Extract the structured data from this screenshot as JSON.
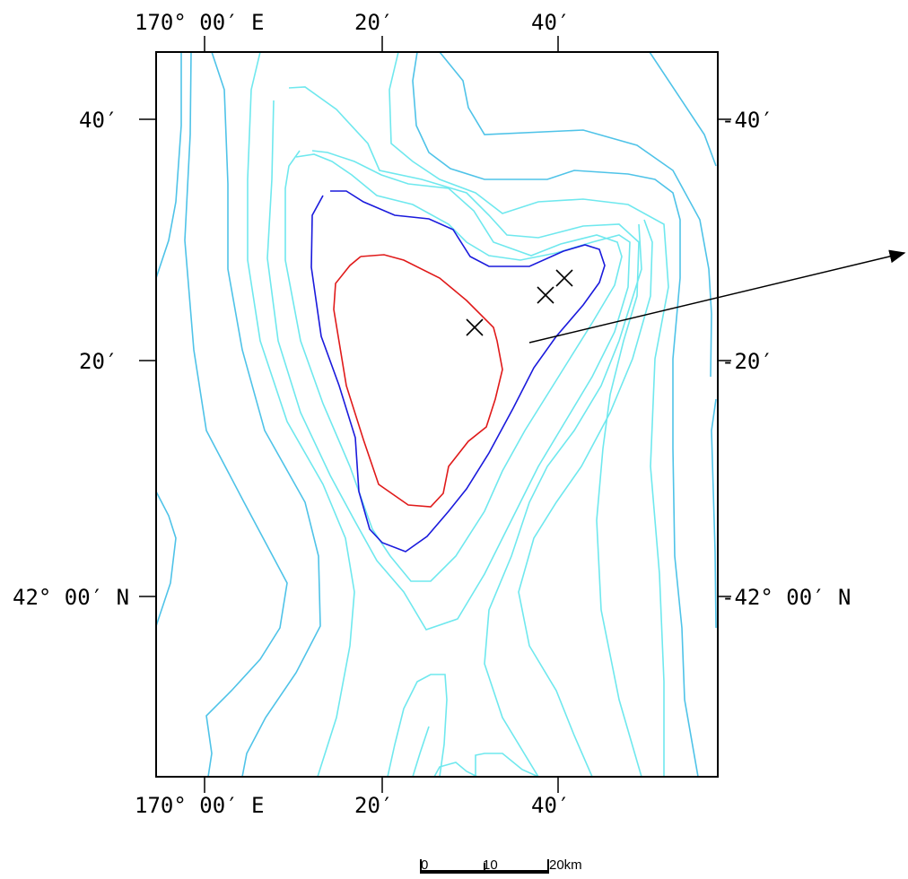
{
  "top_axis": {
    "labels": [
      "170° 00′ E",
      "20′",
      "40′"
    ]
  },
  "bottom_axis": {
    "labels": [
      "170° 00′ E",
      "20′",
      "40′"
    ]
  },
  "left_axis": {
    "labels": [
      "40′",
      "20′",
      "42° 00′ N"
    ]
  },
  "right_axis": {
    "labels": [
      "-40′",
      "-20′",
      "-42° 00′ N"
    ]
  },
  "scale_bar": {
    "labels": [
      "0",
      "10",
      "20km"
    ]
  },
  "colors": {
    "frame": "#000000",
    "contour_outer": "#4fc3e8",
    "contour_mid": "#6fe8ee",
    "contour_inner_blue": "#1a1adc",
    "contour_innermost_red": "#e01a1a",
    "markers": "#000000",
    "arrow": "#000000"
  },
  "markers": [
    {
      "name": "x-marker-1",
      "icon": "cross-icon"
    },
    {
      "name": "x-marker-2",
      "icon": "cross-icon"
    },
    {
      "name": "x-marker-3",
      "icon": "cross-icon"
    }
  ]
}
